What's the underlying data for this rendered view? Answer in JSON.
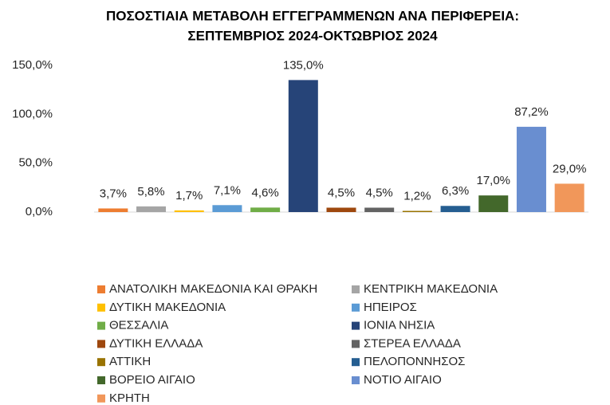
{
  "chart_data": {
    "type": "bar",
    "title": [
      "ΠΟΣΟΣΤΙΑΙΑ ΜΕΤΑΒΟΛΗ ΕΓΓΕΓΡΑΜΜΕΝΩΝ ΑΝΑ ΠΕΡΙΦΕΡΕΙΑ:",
      "ΣΕΠΤΕΜΒΡΙΟΣ 2024-ΟΚΤΩΒΡΙΟΣ 2024"
    ],
    "ylim": [
      0,
      150
    ],
    "yticks": [
      {
        "value": 0,
        "label": "0,0%"
      },
      {
        "value": 50,
        "label": "50,0%"
      },
      {
        "value": 100,
        "label": "100,0%"
      },
      {
        "value": 150,
        "label": "150,0%"
      }
    ],
    "legend": "bottom",
    "series": [
      {
        "name": "ΑΝΑΤΟΛΙΚΗ ΜΑΚΕΔΟΝΙΑ ΚΑΙ ΘΡΑΚΗ",
        "color": "#ED7D31",
        "values": [
          3.7
        ],
        "value_labels": [
          "3,7%"
        ]
      },
      {
        "name": "ΚΕΝΤΡΙΚΗ ΜΑΚΕΔΟΝΙΑ",
        "color": "#A5A5A5",
        "values": [
          5.8
        ],
        "value_labels": [
          "5,8%"
        ]
      },
      {
        "name": "ΔΥΤΙΚΗ ΜΑΚΕΔΟΝΙΑ",
        "color": "#FFC000",
        "values": [
          1.7
        ],
        "value_labels": [
          "1,7%"
        ]
      },
      {
        "name": "ΗΠΕΙΡΟΣ",
        "color": "#5B9BD5",
        "values": [
          7.1
        ],
        "value_labels": [
          "7,1%"
        ]
      },
      {
        "name": "ΘΕΣΣΑΛΙΑ",
        "color": "#70AD47",
        "values": [
          4.6
        ],
        "value_labels": [
          "4,6%"
        ]
      },
      {
        "name": "ΙΟΝΙΑ ΝΗΣΙΑ",
        "color": "#264478",
        "values": [
          135.0
        ],
        "value_labels": [
          "135,0%"
        ]
      },
      {
        "name": "ΔΥΤΙΚΗ ΕΛΛΑΔΑ",
        "color": "#9E480E",
        "values": [
          4.5
        ],
        "value_labels": [
          "4,5%"
        ]
      },
      {
        "name": "ΣΤΕΡΕΑ ΕΛΛΑΔΑ",
        "color": "#636363",
        "values": [
          4.5
        ],
        "value_labels": [
          "4,5%"
        ]
      },
      {
        "name": "ΑΤΤΙΚΗ",
        "color": "#997300",
        "values": [
          1.2
        ],
        "value_labels": [
          "1,2%"
        ]
      },
      {
        "name": "ΠΕΛΟΠΟΝΝΗΣΟΣ",
        "color": "#255E91",
        "values": [
          6.3
        ],
        "value_labels": [
          "6,3%"
        ]
      },
      {
        "name": "ΒΟΡΕΙΟ ΑΙΓΑΙΟ",
        "color": "#43682B",
        "values": [
          17.0
        ],
        "value_labels": [
          "17,0%"
        ]
      },
      {
        "name": "ΝΟΤΙΟ ΑΙΓΑΙΟ",
        "color": "#698ED0",
        "values": [
          87.2
        ],
        "value_labels": [
          "87,2%"
        ]
      },
      {
        "name": "ΚΡΗΤΗ",
        "color": "#F1975A",
        "values": [
          29.0
        ],
        "value_labels": [
          "29,0%"
        ]
      }
    ]
  }
}
